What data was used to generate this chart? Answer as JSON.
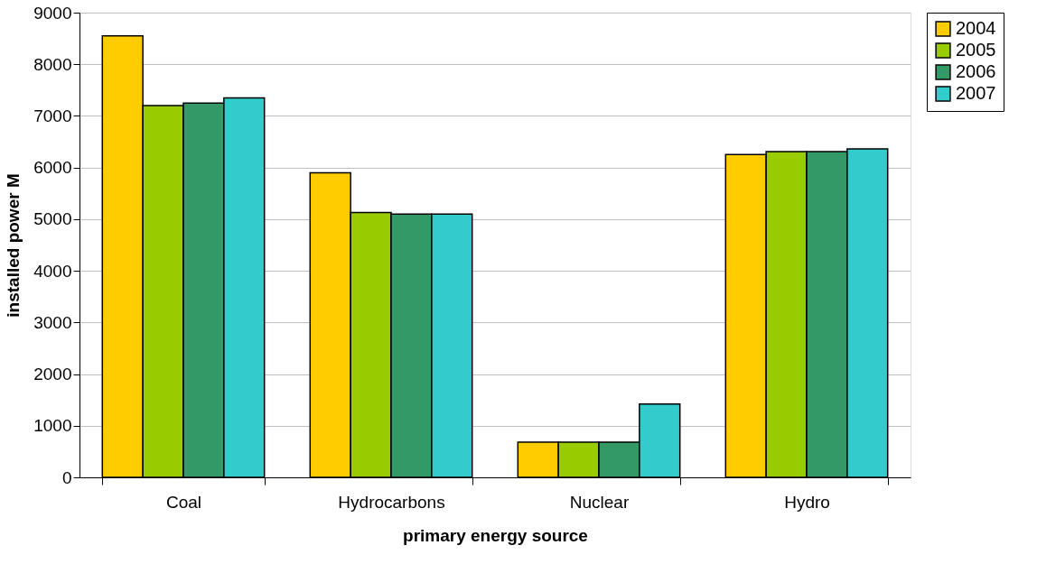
{
  "chart_data": {
    "type": "bar",
    "xlabel": "primary energy source",
    "ylabel": "installed power M",
    "categories": [
      "Coal",
      "Hydrocarbons",
      "Nuclear",
      "Hydro"
    ],
    "series": [
      {
        "name": "2004",
        "color": "#ffcc00",
        "values": [
          8550,
          5900,
          680,
          6250
        ]
      },
      {
        "name": "2005",
        "color": "#99cc00",
        "values": [
          7200,
          5130,
          680,
          6310
        ]
      },
      {
        "name": "2006",
        "color": "#339966",
        "values": [
          7250,
          5100,
          680,
          6310
        ]
      },
      {
        "name": "2007",
        "color": "#33cccc",
        "values": [
          7350,
          5100,
          1420,
          6360
        ]
      }
    ],
    "ylim": [
      0,
      9000
    ],
    "yticks": [
      0,
      1000,
      2000,
      3000,
      4000,
      5000,
      6000,
      7000,
      8000,
      9000
    ],
    "grid": "y",
    "legend": "right"
  }
}
